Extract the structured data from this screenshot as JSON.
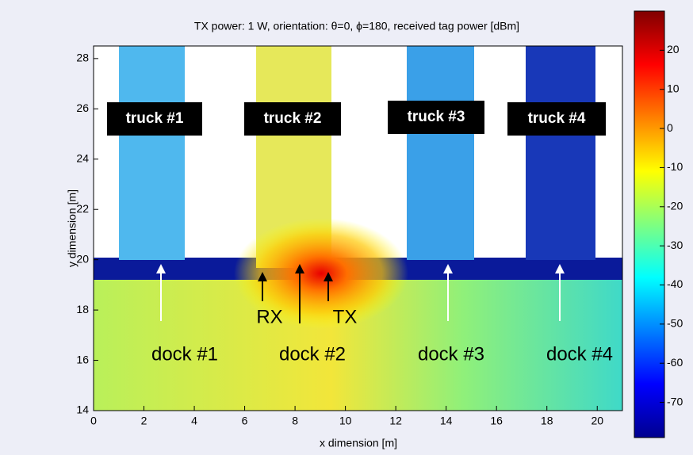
{
  "chart_data": {
    "type": "heatmap",
    "title": "TX power: 1 W, orientation: θ=0, ϕ=180, received tag power [dBm]",
    "xlabel": "x dimension [m]",
    "ylabel": "y dimension [m]",
    "xlim": [
      0,
      21
    ],
    "ylim": [
      14,
      28.5
    ],
    "xticks": [
      0,
      2,
      4,
      6,
      8,
      10,
      12,
      14,
      16,
      18,
      20
    ],
    "yticks": [
      14,
      16,
      18,
      20,
      22,
      24,
      26,
      28
    ],
    "clim": [
      -79,
      30
    ],
    "cticks": [
      -70,
      -60,
      -50,
      -40,
      -30,
      -20,
      -10,
      0,
      10,
      20
    ],
    "trucks": [
      "truck #1",
      "truck #2",
      "truck #3",
      "truck #4"
    ],
    "docks": [
      "dock #1",
      "dock #2",
      "dock #3",
      "dock #4"
    ],
    "rx": "RX",
    "tx": "TX"
  }
}
